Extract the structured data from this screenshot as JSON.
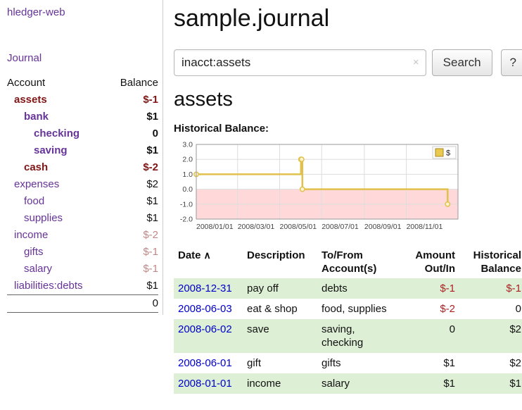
{
  "app": {
    "title": "hledger-web"
  },
  "sidebar": {
    "journal_link": "Journal",
    "accounts_header": {
      "account": "Account",
      "balance": "Balance"
    },
    "accounts": [
      {
        "name": "assets",
        "balance": "$-1",
        "depth": 0
      },
      {
        "name": "bank",
        "balance": "$1",
        "depth": 1
      },
      {
        "name": "checking",
        "balance": "0",
        "depth": 2
      },
      {
        "name": "saving",
        "balance": "$1",
        "depth": 2
      },
      {
        "name": "cash",
        "balance": "$-2",
        "depth": 1
      },
      {
        "name": "expenses",
        "balance": "$2",
        "depth": 0
      },
      {
        "name": "food",
        "balance": "$1",
        "depth": 1
      },
      {
        "name": "supplies",
        "balance": "$1",
        "depth": 1
      },
      {
        "name": "income",
        "balance": "$-2",
        "depth": 0
      },
      {
        "name": "gifts",
        "balance": "$-1",
        "depth": 1
      },
      {
        "name": "salary",
        "balance": "$-1",
        "depth": 1
      },
      {
        "name": "liabilities:debts",
        "balance": "$1",
        "depth": 0
      }
    ],
    "total": "0"
  },
  "main": {
    "title": "sample.journal",
    "search": {
      "value": "inacct:assets",
      "clear_icon": "×",
      "button": "Search",
      "help_button": "?"
    },
    "heading": "assets"
  },
  "chart_data": {
    "type": "line",
    "title": "Historical Balance:",
    "step": true,
    "series": [
      {
        "name": "$",
        "points": [
          [
            "2008-01-01",
            1
          ],
          [
            "2008-06-01",
            2
          ],
          [
            "2008-06-02",
            2
          ],
          [
            "2008-06-03",
            0
          ],
          [
            "2008-12-31",
            -1
          ]
        ]
      }
    ],
    "ylim": [
      -2.0,
      3.0
    ],
    "yticks": [
      3.0,
      2.0,
      1.0,
      0.0,
      -1.0,
      -2.0
    ],
    "xticks": [
      "2008/01/01",
      "2008/03/01",
      "2008/05/01",
      "2008/07/01",
      "2008/09/01",
      "2008/11/01"
    ],
    "xlim": [
      "2008-01-01",
      "2009-01-15"
    ],
    "legend_position": "top-right",
    "grid": true,
    "colors": {
      "line": "#e2c04c",
      "marker_fill": "#fdf3cf",
      "negative_region": "#ffd9d9",
      "legend_fill": "#eac94f",
      "legend_border": "#a8871c",
      "grid": "#dddddd",
      "frame": "#999999",
      "tick_text": "#444444"
    }
  },
  "table": {
    "headers": {
      "date": "Date",
      "sort_indicator": "∧",
      "description": "Description",
      "tofrom": "To/From\nAccount(s)",
      "amount": "Amount\nOut/In",
      "balance": "Historical\nBalance"
    },
    "rows": [
      {
        "date": "2008-12-31",
        "description": "pay off",
        "accounts": "debts",
        "amount": "$-1",
        "balance": "$-1"
      },
      {
        "date": "2008-06-03",
        "description": "eat & shop",
        "accounts": "food, supplies",
        "amount": "$-2",
        "balance": "0"
      },
      {
        "date": "2008-06-02",
        "description": "save",
        "accounts": "saving,\nchecking",
        "amount": "0",
        "balance": "$2"
      },
      {
        "date": "2008-06-01",
        "description": "gift",
        "accounts": "gifts",
        "amount": "$1",
        "balance": "$2"
      },
      {
        "date": "2008-01-01",
        "description": "income",
        "accounts": "salary",
        "amount": "$1",
        "balance": "$1"
      }
    ]
  },
  "colors": {
    "link_purple": "#663399",
    "date_link_blue": "#0000cc",
    "negative_strong": "#801515",
    "negative_soft": "#c08888",
    "negative_table": "#aa2222",
    "row_green": "#ddefd5"
  }
}
